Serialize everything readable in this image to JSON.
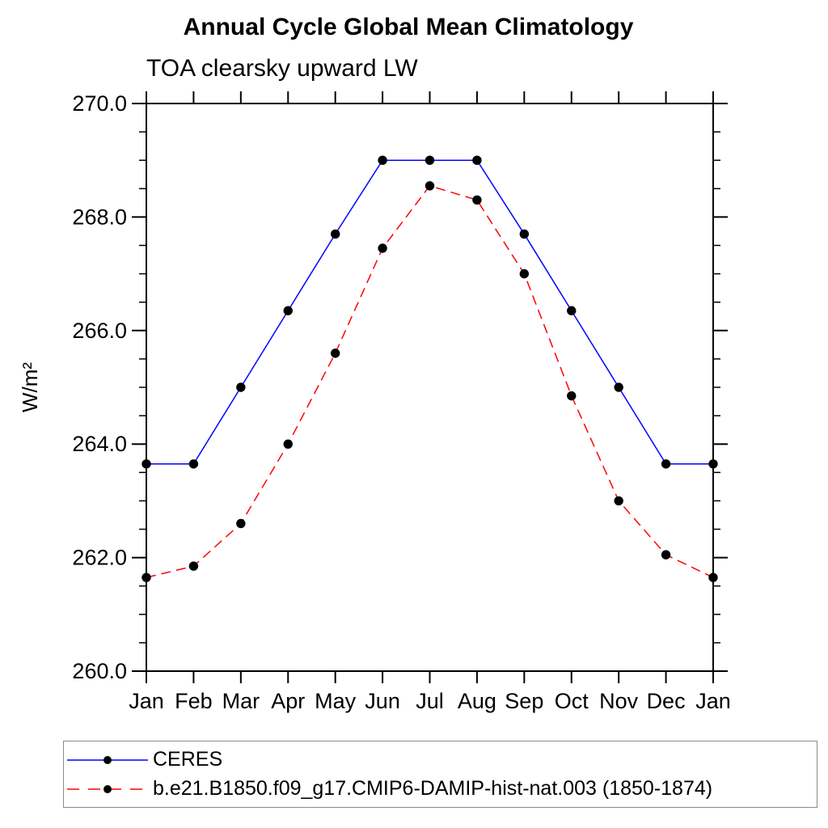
{
  "chart_data": {
    "type": "line",
    "title": "Annual Cycle Global Mean Climatology",
    "subtitle": "TOA clearsky upward LW",
    "ylabel": "W/m²",
    "xlabel": "",
    "categories": [
      "Jan",
      "Feb",
      "Mar",
      "Apr",
      "May",
      "Jun",
      "Jul",
      "Aug",
      "Sep",
      "Oct",
      "Nov",
      "Dec",
      "Jan"
    ],
    "series": [
      {
        "name": "CERES",
        "color": "#0000ff",
        "line_style": "solid",
        "marker": "filled-circle",
        "marker_color": "#000000",
        "values": [
          263.65,
          263.65,
          265.0,
          266.35,
          267.7,
          269.0,
          269.0,
          269.0,
          267.7,
          266.35,
          265.0,
          263.65,
          263.65
        ]
      },
      {
        "name": "b.e21.B1850.f09_g17.CMIP6-DAMIP-hist-nat.003 (1850-1874)",
        "color": "#ff0000",
        "line_style": "dashed",
        "marker": "filled-circle",
        "marker_color": "#000000",
        "values": [
          261.65,
          261.85,
          262.6,
          264.0,
          265.6,
          267.45,
          268.55,
          268.3,
          267.0,
          264.85,
          263.0,
          262.05,
          261.65
        ]
      }
    ],
    "ylim": [
      260.0,
      270.0
    ],
    "ytick_major": 2.0,
    "ytick_minor": 0.5,
    "ytick_labels": [
      "260.0",
      "262.0",
      "264.0",
      "266.0",
      "268.0",
      "270.0"
    ],
    "grid": false,
    "legend_position": "bottom-box",
    "axis_color": "#000000",
    "legend_border_color": "#8a8a8a"
  }
}
